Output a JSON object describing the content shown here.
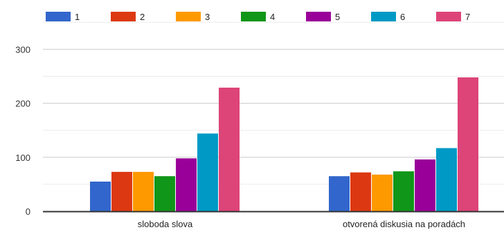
{
  "chart_data": {
    "type": "bar",
    "categories": [
      "sloboda slova",
      "otvorená diskusia na poradách"
    ],
    "series": [
      {
        "name": "1",
        "color": "#3366cc",
        "values": [
          55,
          65
        ]
      },
      {
        "name": "2",
        "color": "#dc3912",
        "values": [
          73,
          72
        ]
      },
      {
        "name": "3",
        "color": "#ff9900",
        "values": [
          73,
          68
        ]
      },
      {
        "name": "4",
        "color": "#109618",
        "values": [
          65,
          74
        ]
      },
      {
        "name": "5",
        "color": "#990099",
        "values": [
          98,
          96
        ]
      },
      {
        "name": "6",
        "color": "#0099c6",
        "values": [
          144,
          117
        ]
      },
      {
        "name": "7",
        "color": "#dd4477",
        "values": [
          229,
          248
        ]
      }
    ],
    "yticks": [
      0,
      100,
      200,
      300
    ],
    "ylim": [
      0,
      350
    ],
    "grid": true,
    "legend_position": "top",
    "title": "",
    "xlabel": "",
    "ylabel": ""
  }
}
